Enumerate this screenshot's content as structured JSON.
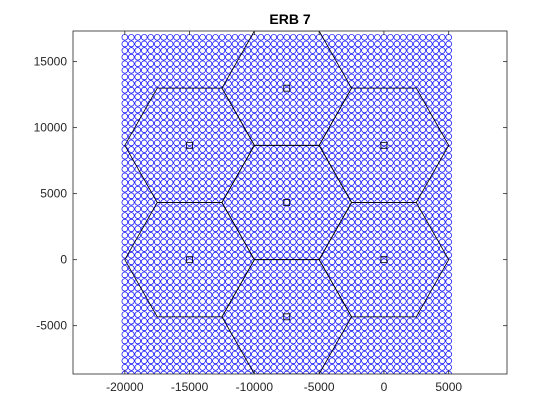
{
  "chart_data": {
    "type": "scatter",
    "title": "ERB 7",
    "xlabel": "",
    "ylabel": "",
    "xlim": [
      -24000,
      9500
    ],
    "ylim": [
      -8660,
      17320
    ],
    "xticks": [
      -20000,
      -15000,
      -10000,
      -5000,
      0,
      5000
    ],
    "yticks": [
      -5000,
      0,
      5000,
      10000,
      15000
    ],
    "xtick_labels": [
      "-20000",
      "-15000",
      "-10000",
      "-5000",
      "0",
      "5000"
    ],
    "ytick_labels": [
      "-5000",
      "0",
      "5000",
      "10000",
      "15000"
    ],
    "grid": false,
    "legend": "none",
    "colors": {
      "points": "#0000ff",
      "hexagons": "#000000",
      "axes": "#262626"
    },
    "point_grid": {
      "marker": "circle",
      "x_range": [
        -20000,
        5000
      ],
      "y_range": [
        -8660,
        17320
      ],
      "x_step": 500,
      "y_step": 500
    },
    "hexagon_radius": 5000,
    "stations": [
      {
        "x": -7500,
        "y": 12990
      },
      {
        "x": -15000,
        "y": 8660
      },
      {
        "x": 0,
        "y": 8660
      },
      {
        "x": -7500,
        "y": 4330
      },
      {
        "x": -15000,
        "y": 0
      },
      {
        "x": 0,
        "y": 0
      },
      {
        "x": -7500,
        "y": -4330
      }
    ]
  }
}
